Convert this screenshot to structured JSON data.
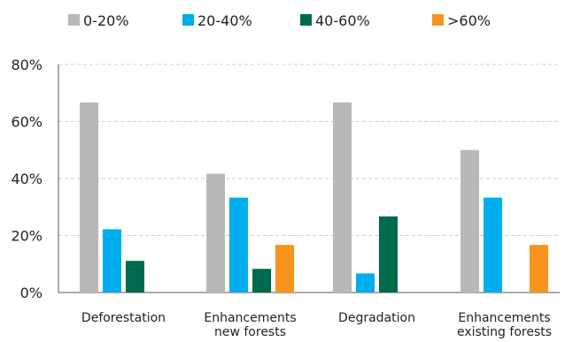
{
  "chart_data": {
    "type": "bar",
    "title": "",
    "xlabel": "",
    "ylabel": "",
    "categories": [
      [
        "Deforestation"
      ],
      [
        "Enhancements",
        "new forests"
      ],
      [
        "Degradation"
      ],
      [
        "Enhancements",
        "existing forests"
      ]
    ],
    "series": [
      {
        "name": "0-20%",
        "color": "#b8b8b8",
        "values": [
          66.7,
          41.7,
          66.7,
          50.0
        ]
      },
      {
        "name": "20-40%",
        "color": "#00aeef",
        "values": [
          22.2,
          33.3,
          6.7,
          33.3
        ]
      },
      {
        "name": "40-60%",
        "color": "#006a4e",
        "values": [
          11.1,
          8.3,
          26.7,
          null
        ]
      },
      {
        "name": ">60%",
        "color": "#f7941d",
        "values": [
          null,
          16.7,
          null,
          16.7
        ]
      }
    ],
    "ylim": [
      0,
      80
    ],
    "yticks": [
      0,
      20,
      40,
      60,
      80
    ],
    "ytick_labels": [
      "0%",
      "20%",
      "40%",
      "60%",
      "80%"
    ],
    "grid": "horizontal dashed",
    "legend_position": "top"
  }
}
